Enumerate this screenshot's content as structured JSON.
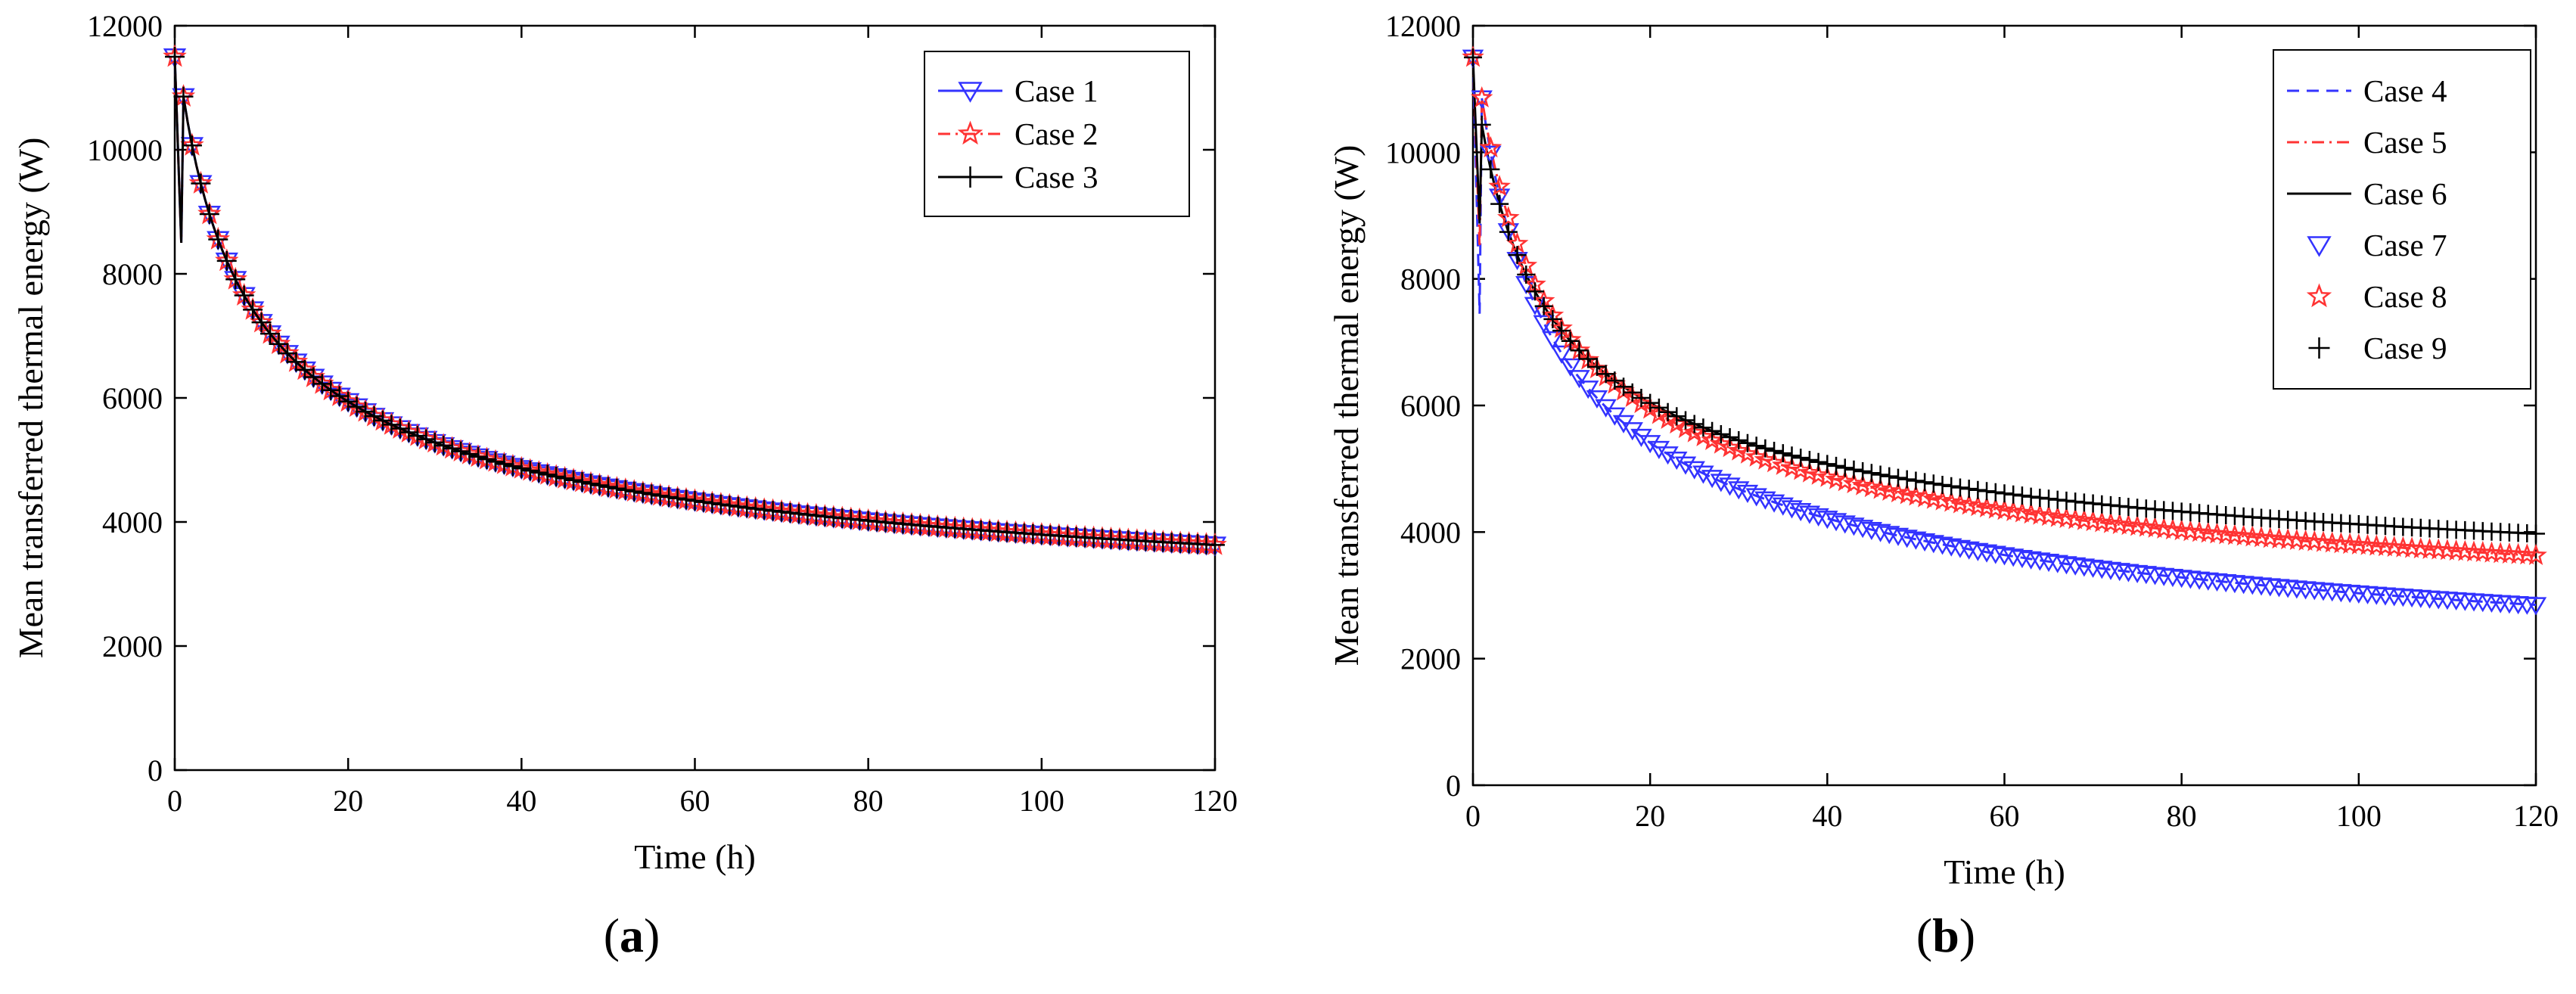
{
  "figure": {
    "panels": [
      {
        "id": "a",
        "label_open": "(",
        "label_letter": "a",
        "label_close": ")"
      },
      {
        "id": "b",
        "label_open": "(",
        "label_letter": "b",
        "label_close": ")"
      }
    ]
  },
  "chart_data": [
    {
      "type": "line",
      "panel": "a",
      "title": "",
      "xlabel": "Time (h)",
      "ylabel": "Mean transferred thermal energy (W)",
      "xlim": [
        0,
        120
      ],
      "ylim": [
        0,
        12000
      ],
      "xticks": [
        0,
        20,
        40,
        60,
        80,
        100,
        120
      ],
      "yticks": [
        0,
        2000,
        4000,
        6000,
        8000,
        10000,
        12000
      ],
      "grid": false,
      "legend_position": "top-right",
      "series": [
        {
          "name": "Case 1",
          "color": "#3333ff",
          "line_style": "solid",
          "marker": "triangle-down",
          "model": {
            "y0": 11500,
            "y1": 7500,
            "a": 1813,
            "b": 20226,
            "p": 0.5
          }
        },
        {
          "name": "Case 2",
          "color": "#ff3333",
          "line_style": "dashdot",
          "marker": "star",
          "model": {
            "y0": 11500,
            "y1": 7500,
            "a": 1813,
            "b": 20226,
            "p": 0.5
          }
        },
        {
          "name": "Case 3",
          "color": "#000000",
          "line_style": "solid",
          "marker": "plus",
          "model": {
            "y0": 11500,
            "y1": 7500,
            "a": 1813,
            "b": 20226,
            "p": 0.5
          }
        }
      ]
    },
    {
      "type": "line",
      "panel": "b",
      "title": "",
      "xlabel": "Time (h)",
      "ylabel": "Mean transferred thermal energy (W)",
      "xlim": [
        0,
        120
      ],
      "ylim": [
        0,
        12000
      ],
      "xticks": [
        0,
        20,
        40,
        60,
        80,
        100,
        120
      ],
      "yticks": [
        0,
        2000,
        4000,
        6000,
        8000,
        10000,
        12000
      ],
      "grid": false,
      "legend_position": "top-right",
      "series": [
        {
          "name": "Case 4",
          "color": "#3333ff",
          "line_style": "dashed",
          "marker": "none",
          "model": {
            "y0": 11500,
            "y1": 6100,
            "a": 837.5,
            "b": 22400,
            "p": 0.5
          }
        },
        {
          "name": "Case 5",
          "color": "#ff3333",
          "line_style": "dashdot",
          "marker": "none",
          "model": {
            "y0": 11500,
            "y1": 7500,
            "a": 1813,
            "b": 20226,
            "p": 0.5
          }
        },
        {
          "name": "Case 6",
          "color": "#000000",
          "line_style": "solid",
          "marker": "none",
          "model": {
            "y0": 11500,
            "y1": 8000,
            "a": 2350,
            "b": 18080,
            "p": 0.5
          }
        },
        {
          "name": "Case 7",
          "color": "#3333ff",
          "line_style": "none",
          "marker": "triangle-down",
          "model": {
            "y0": 11500,
            "y1": 6100,
            "a": 837.5,
            "b": 22400,
            "p": 0.5
          }
        },
        {
          "name": "Case 8",
          "color": "#ff3333",
          "line_style": "none",
          "marker": "star",
          "model": {
            "y0": 11500,
            "y1": 7500,
            "a": 1813,
            "b": 20226,
            "p": 0.5
          }
        },
        {
          "name": "Case 9",
          "color": "#000000",
          "line_style": "none",
          "marker": "plus",
          "model": {
            "y0": 11500,
            "y1": 8000,
            "a": 2350,
            "b": 18080,
            "p": 0.5
          }
        }
      ]
    }
  ]
}
